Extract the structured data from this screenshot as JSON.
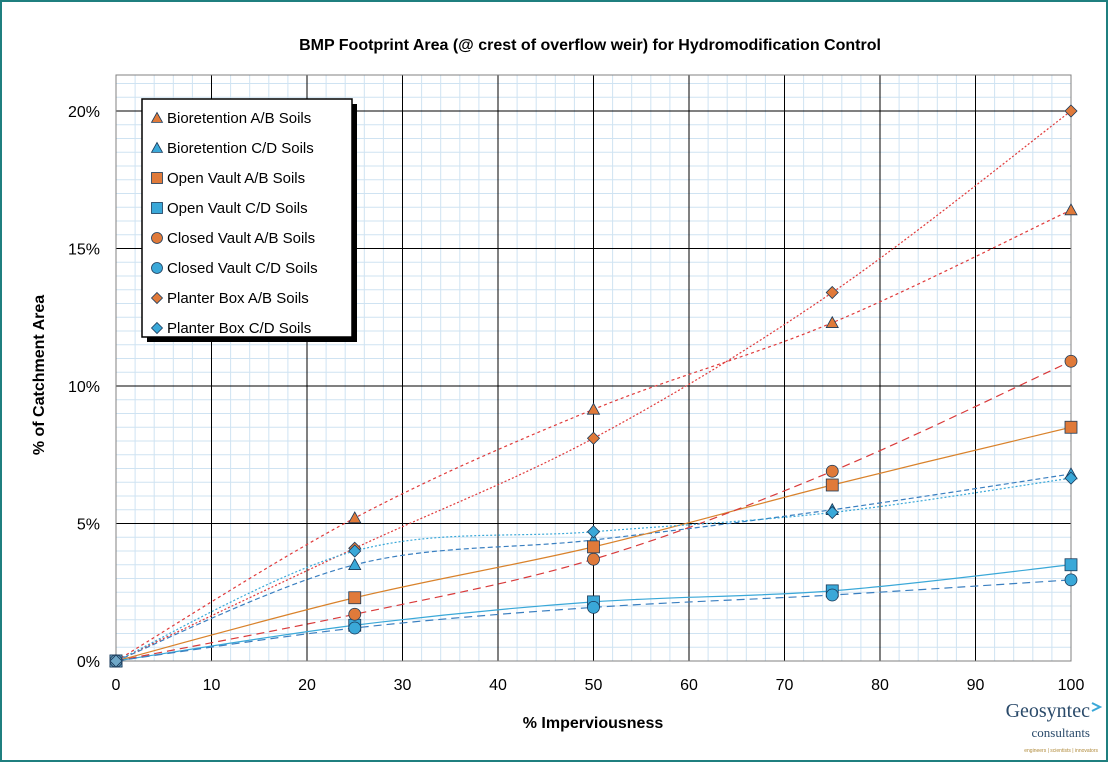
{
  "chart_data": {
    "type": "scatter",
    "title": "BMP Footprint Area (@ crest of overflow weir) for Hydromodification Control",
    "xlabel": "% Imperviousness",
    "ylabel": "% of Catchment Area",
    "xlim": [
      0,
      100
    ],
    "ylim": [
      0,
      20
    ],
    "x_ticks": [
      "0",
      "10",
      "20",
      "30",
      "40",
      "50",
      "60",
      "70",
      "80",
      "90",
      "100"
    ],
    "y_ticks": [
      "0%",
      "5%",
      "10%",
      "15%",
      "20%"
    ],
    "grid": true,
    "legend_position": "top-left",
    "series": [
      {
        "name": "Bioretention A/B Soils",
        "marker": "triangle",
        "color": "#e07a3a",
        "line_color": "#e03a3a",
        "dash": "3,3",
        "x": [
          0,
          25,
          50,
          75,
          100
        ],
        "y": [
          0,
          5.2,
          9.15,
          12.3,
          16.4
        ]
      },
      {
        "name": "Bioretention C/D Soils",
        "marker": "triangle",
        "color": "#3aa8d8",
        "line_color": "#3a7fc0",
        "dash": "5,3",
        "x": [
          0,
          25,
          50,
          75,
          100
        ],
        "y": [
          0,
          3.5,
          4.4,
          5.5,
          6.8
        ]
      },
      {
        "name": "Open Vault A/B Soils",
        "marker": "square",
        "color": "#e07a3a",
        "line_color": "#d9822b",
        "dash": "",
        "x": [
          0,
          25,
          50,
          75,
          100
        ],
        "y": [
          0,
          2.3,
          4.15,
          6.4,
          8.5
        ]
      },
      {
        "name": "Open Vault C/D Soils",
        "marker": "square",
        "color": "#3aa8d8",
        "line_color": "#3aa8d8",
        "dash": "",
        "x": [
          0,
          25,
          50,
          75,
          100
        ],
        "y": [
          0,
          1.3,
          2.15,
          2.55,
          3.5
        ]
      },
      {
        "name": "Closed Vault A/B Soils",
        "marker": "circle",
        "color": "#e07a3a",
        "line_color": "#d93a3a",
        "dash": "8,5",
        "x": [
          0,
          25,
          50,
          75,
          100
        ],
        "y": [
          0,
          1.7,
          3.7,
          6.9,
          10.9
        ]
      },
      {
        "name": "Closed Vault C/D Soils",
        "marker": "circle",
        "color": "#3aa8d8",
        "line_color": "#3a7fc0",
        "dash": "8,5",
        "x": [
          0,
          25,
          50,
          75,
          100
        ],
        "y": [
          0,
          1.2,
          1.95,
          2.4,
          2.95
        ]
      },
      {
        "name": "Planter Box A/B Soils",
        "marker": "diamond",
        "color": "#e07a3a",
        "line_color": "#e03a3a",
        "dash": "2,2",
        "x": [
          0,
          25,
          50,
          75,
          100
        ],
        "y": [
          0,
          4.1,
          8.1,
          13.4,
          20.0
        ]
      },
      {
        "name": "Planter Box C/D Soils",
        "marker": "diamond",
        "color": "#3aa8d8",
        "line_color": "#3aa8d8",
        "dash": "2,2",
        "x": [
          0,
          25,
          50,
          75,
          100
        ],
        "y": [
          0,
          4.0,
          4.7,
          5.4,
          6.65
        ]
      }
    ]
  },
  "logo": {
    "name": "Geosyntec",
    "sub": "consultants",
    "tagline": "engineers | scientists | innovators"
  }
}
